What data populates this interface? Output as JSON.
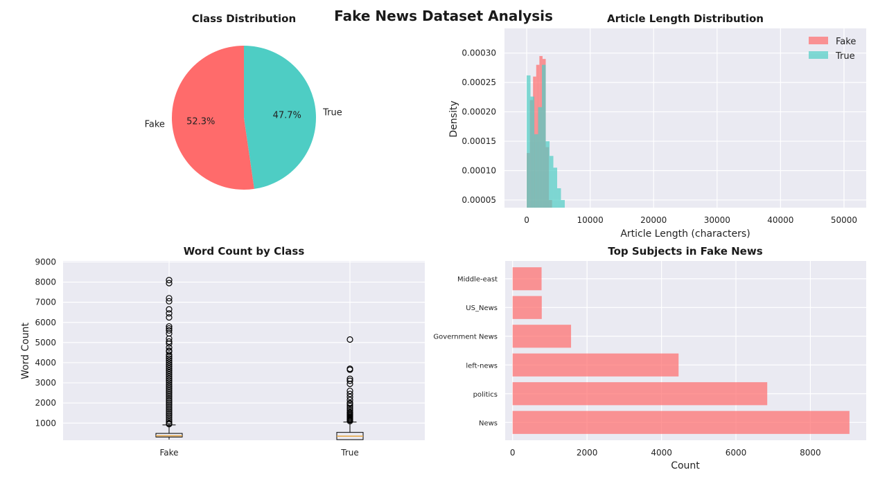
{
  "suptitle": "Fake News Dataset Analysis",
  "colors": {
    "fake": "#ff6b6b",
    "true": "#4ecdc4",
    "panel": "#eaeaf2",
    "median": "#e8a33a"
  },
  "chart_data": [
    {
      "type": "pie",
      "title": "Class Distribution",
      "labels": [
        "Fake",
        "True"
      ],
      "values": [
        52.3,
        47.7
      ],
      "pct_labels": [
        "52.3%",
        "47.7%"
      ],
      "startangle": 90
    },
    {
      "type": "histogram",
      "title": "Article Length Distribution",
      "xlabel": "Article Length (characters)",
      "ylabel": "Density",
      "xlim": [
        -3500,
        53500
      ],
      "ylim": [
        3.7e-05,
        0.000342
      ],
      "xticks": [
        0,
        10000,
        20000,
        30000,
        40000,
        50000
      ],
      "xtick_labels": [
        "0",
        "10000",
        "20000",
        "30000",
        "40000",
        "50000"
      ],
      "yticks": [
        5e-05,
        0.0001,
        0.00015,
        0.0002,
        0.00025,
        0.0003
      ],
      "ytick_labels": [
        "0.00005",
        "0.00010",
        "0.00015",
        "0.00020",
        "0.00025",
        "0.00030"
      ],
      "legend_position": "top-right",
      "series": [
        {
          "name": "Fake",
          "bin_edges": [
            0,
            500,
            1000,
            1500,
            2000,
            2500,
            3000,
            3500,
            4000
          ],
          "values": [
            0.00013,
            0.00022,
            0.00026,
            0.00028,
            0.000295,
            0.00029,
            0.00014,
            5e-05
          ]
        },
        {
          "name": "True",
          "bin_edges": [
            0,
            600,
            1200,
            1800,
            2400,
            3000,
            3600,
            4200,
            4800,
            5400,
            6000
          ],
          "values": [
            0.000262,
            0.000226,
            0.000162,
            0.000208,
            0.00028,
            0.00015,
            0.000125,
            0.000105,
            7e-05,
            5e-05
          ]
        }
      ]
    },
    {
      "type": "boxplot",
      "title": "Word Count by Class",
      "ylabel": "Word Count",
      "categories": [
        "Fake",
        "True"
      ],
      "ylim": [
        150,
        9050
      ],
      "yticks": [
        1000,
        2000,
        3000,
        4000,
        5000,
        6000,
        7000,
        8000,
        9000
      ],
      "ytick_labels": [
        "1000",
        "2000",
        "3000",
        "4000",
        "5000",
        "6000",
        "7000",
        "8000",
        "9000"
      ],
      "boxes": [
        {
          "q1": 310,
          "median": 370,
          "q3": 490,
          "whislo": 180,
          "whishi": 910,
          "outliers": [
            8100,
            7950,
            7200,
            7050,
            6650,
            6450,
            6250,
            5800,
            5700,
            5600,
            5450,
            5200,
            5050,
            4950,
            4750,
            4600,
            4550,
            4400,
            4300,
            4200,
            4100,
            4000,
            3900,
            3800,
            3700,
            3600,
            3500,
            3400,
            3300,
            3200,
            3100,
            3000,
            2900,
            2800,
            2700,
            2600,
            2500,
            2400,
            2300,
            2200,
            2100,
            2000,
            1900,
            1800,
            1700,
            1600,
            1500,
            1400,
            1300,
            1200,
            1100,
            1000,
            950
          ]
        },
        {
          "q1": 180,
          "median": 350,
          "q3": 540,
          "whislo": 170,
          "whishi": 1050,
          "outliers": [
            5150,
            3700,
            3650,
            3200,
            3100,
            2950,
            2600,
            2450,
            2300,
            2150,
            2000,
            1950,
            1850,
            1750,
            1650,
            1550,
            1500,
            1450,
            1400,
            1350,
            1300,
            1250,
            1200,
            1150,
            1100
          ]
        }
      ]
    },
    {
      "type": "barh",
      "title": "Top Subjects in Fake News",
      "xlabel": "Count",
      "categories": [
        "News",
        "politics",
        "left-news",
        "Government News",
        "US_News",
        "Middle-east"
      ],
      "values": [
        9050,
        6841,
        4459,
        1570,
        783,
        778
      ],
      "xlim": [
        -200,
        9500
      ],
      "xticks": [
        0,
        2000,
        4000,
        6000,
        8000
      ],
      "xtick_labels": [
        "0",
        "2000",
        "4000",
        "6000",
        "8000"
      ]
    }
  ]
}
